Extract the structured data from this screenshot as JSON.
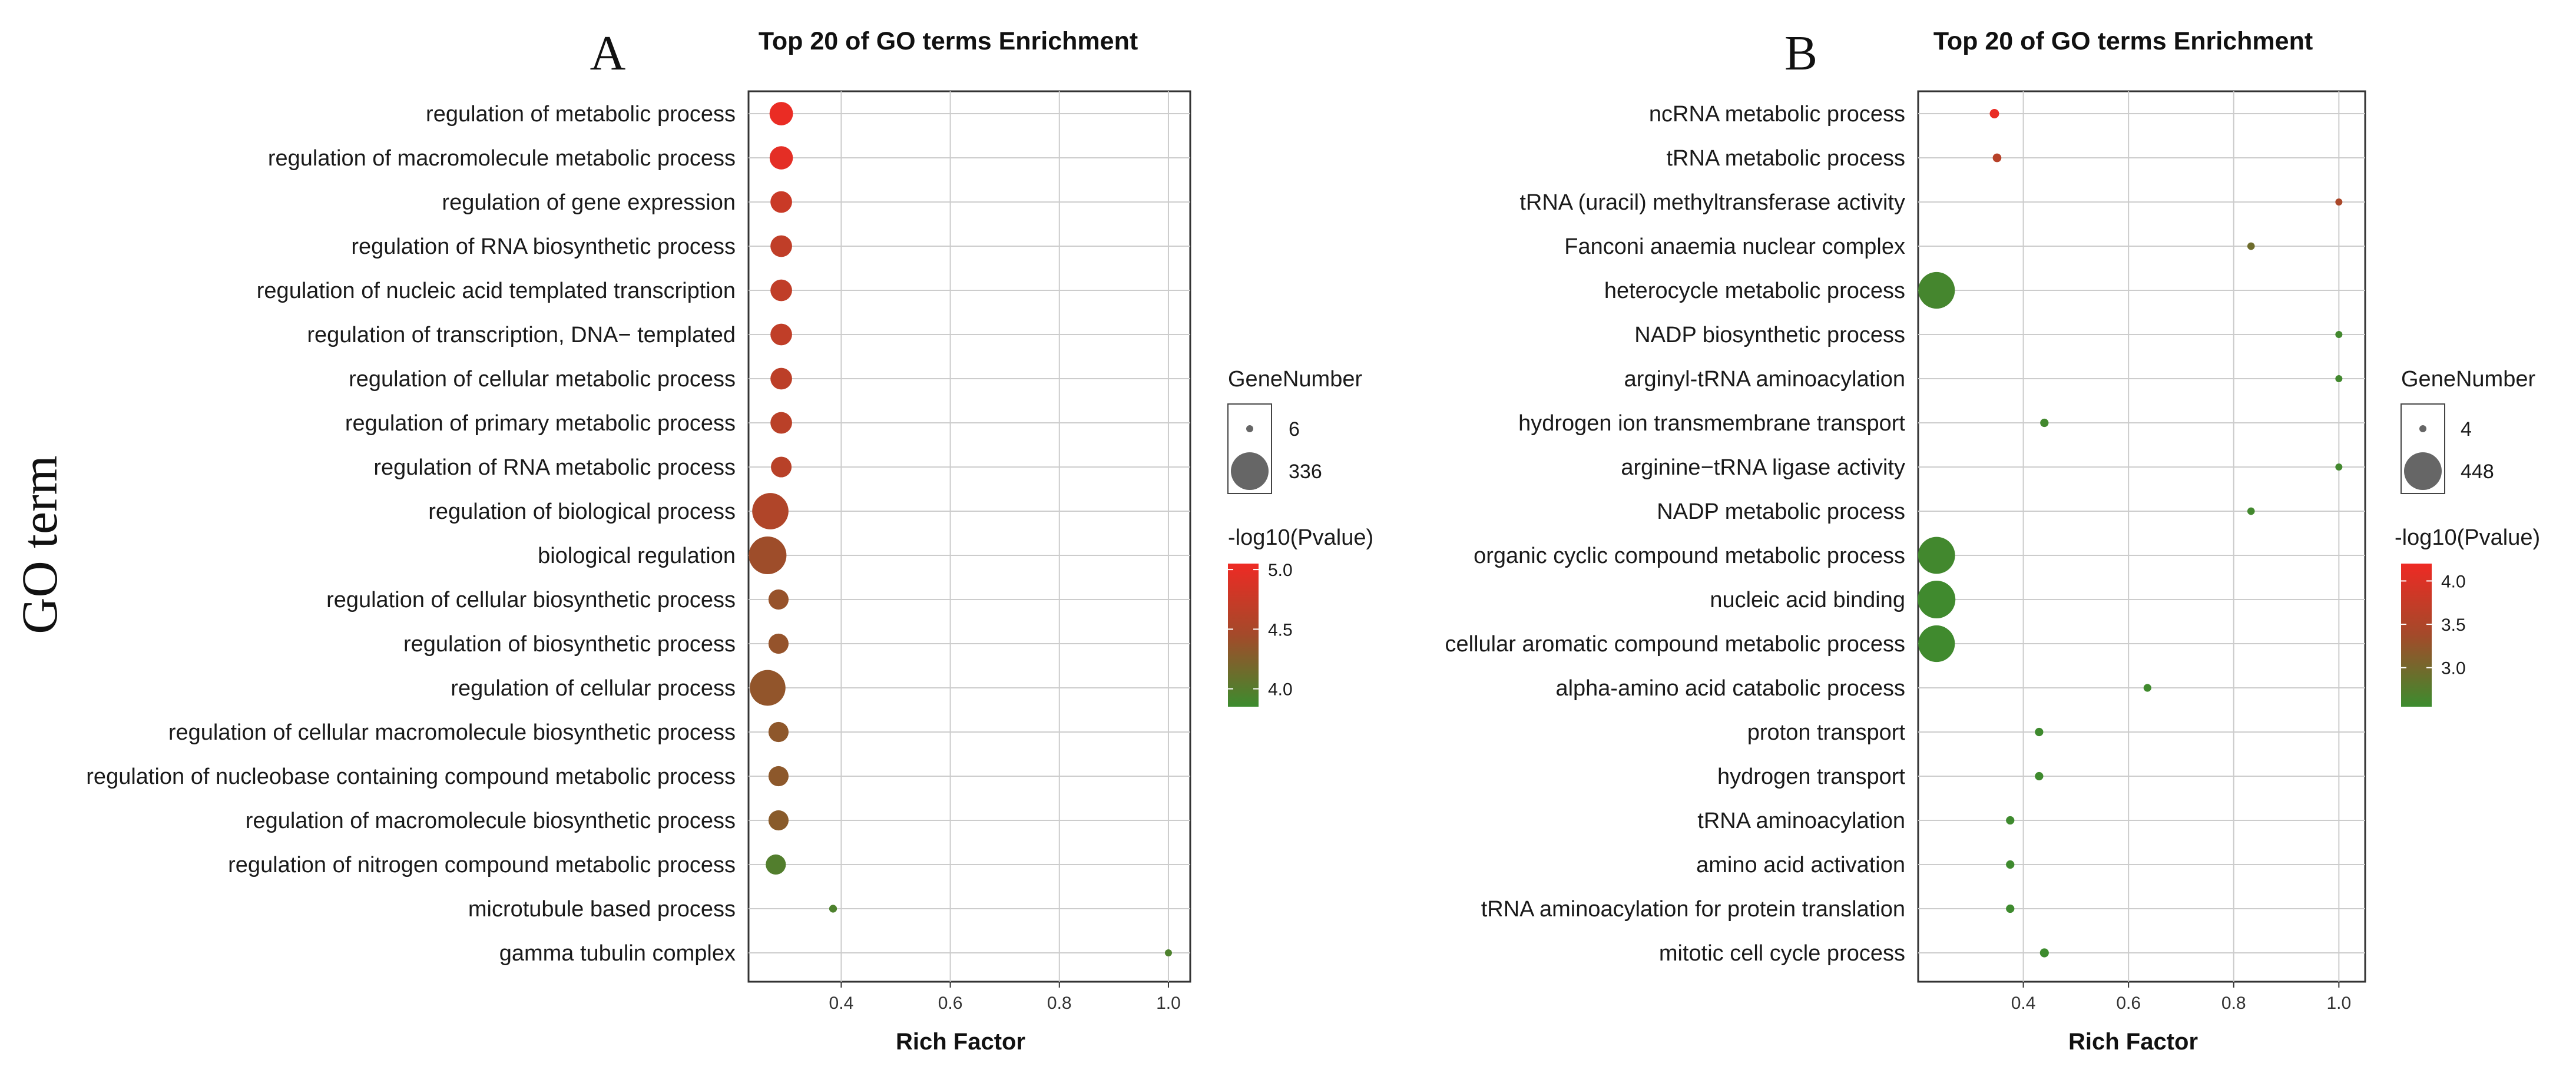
{
  "y_axis_title": "GO term",
  "colors": {
    "high": "#ee2a24",
    "mid": "#a34a2a",
    "low": "#3c8c2e",
    "dot_stroke": "#666666",
    "grid": "#cccccc"
  },
  "chart_data": [
    {
      "panel_letter": "A",
      "type": "scatter",
      "title": "Top 20 of GO terms Enrichment",
      "xlabel": "Rich Factor",
      "ylabel": "GO term",
      "xlim": [
        0.23,
        1.04
      ],
      "xticks": [
        0.4,
        0.6,
        0.8,
        1.0
      ],
      "xtick_labels": [
        "0.4",
        "0.6",
        "0.8",
        "1.0"
      ],
      "size_legend": {
        "title": "GeneNumber",
        "entries": [
          {
            "value": 6,
            "label": "6"
          },
          {
            "value": 336,
            "label": "336"
          }
        ]
      },
      "color_legend": {
        "title": "-log10(Pvalue)",
        "range": [
          3.85,
          5.05
        ],
        "ticks": [
          5.0,
          4.5,
          4.0
        ],
        "tick_labels": [
          "5.0",
          "4.5",
          "4.0"
        ]
      },
      "terms": [
        {
          "term": "regulation of metabolic process",
          "rich_factor": 0.29,
          "gene_number": 120,
          "log10p": 5.02
        },
        {
          "term": "regulation of macromolecule metabolic process",
          "rich_factor": 0.29,
          "gene_number": 118,
          "log10p": 4.97
        },
        {
          "term": "regulation of gene expression",
          "rich_factor": 0.29,
          "gene_number": 100,
          "log10p": 4.75
        },
        {
          "term": "regulation of RNA biosynthetic process",
          "rich_factor": 0.29,
          "gene_number": 100,
          "log10p": 4.68
        },
        {
          "term": "regulation of nucleic acid templated transcription",
          "rich_factor": 0.29,
          "gene_number": 100,
          "log10p": 4.68
        },
        {
          "term": "regulation of transcription, DNA− templated",
          "rich_factor": 0.29,
          "gene_number": 100,
          "log10p": 4.68
        },
        {
          "term": "regulation of cellular metabolic process",
          "rich_factor": 0.29,
          "gene_number": 100,
          "log10p": 4.65
        },
        {
          "term": "regulation of primary metabolic process",
          "rich_factor": 0.29,
          "gene_number": 100,
          "log10p": 4.63
        },
        {
          "term": "regulation of RNA metabolic process",
          "rich_factor": 0.29,
          "gene_number": 90,
          "log10p": 4.62
        },
        {
          "term": "regulation of biological process",
          "rich_factor": 0.27,
          "gene_number": 310,
          "log10p": 4.55
        },
        {
          "term": "biological regulation",
          "rich_factor": 0.265,
          "gene_number": 336,
          "log10p": 4.42
        },
        {
          "term": "regulation of cellular biosynthetic process",
          "rich_factor": 0.285,
          "gene_number": 85,
          "log10p": 4.38
        },
        {
          "term": "regulation of biosynthetic process",
          "rich_factor": 0.285,
          "gene_number": 85,
          "log10p": 4.37
        },
        {
          "term": "regulation of cellular process",
          "rich_factor": 0.265,
          "gene_number": 300,
          "log10p": 4.35
        },
        {
          "term": "regulation of cellular macromolecule biosynthetic process",
          "rich_factor": 0.285,
          "gene_number": 85,
          "log10p": 4.33
        },
        {
          "term": "regulation of nucleobase containing compound metabolic process",
          "rich_factor": 0.285,
          "gene_number": 85,
          "log10p": 4.32
        },
        {
          "term": "regulation of macromolecule biosynthetic process",
          "rich_factor": 0.285,
          "gene_number": 85,
          "log10p": 4.3
        },
        {
          "term": "regulation of nitrogen compound metabolic process",
          "rich_factor": 0.28,
          "gene_number": 85,
          "log10p": 3.98
        },
        {
          "term": "microtubule based process",
          "rich_factor": 0.385,
          "gene_number": 8,
          "log10p": 3.95
        },
        {
          "term": "gamma tubulin complex",
          "rich_factor": 1.0,
          "gene_number": 6,
          "log10p": 3.95
        }
      ]
    },
    {
      "panel_letter": "B",
      "type": "scatter",
      "title": "Top 20 of GO terms Enrichment",
      "xlabel": "Rich Factor",
      "ylabel": "GO term",
      "xlim": [
        0.2,
        1.05
      ],
      "xticks": [
        0.4,
        0.6,
        0.8,
        1.0
      ],
      "xtick_labels": [
        "0.4",
        "0.6",
        "0.8",
        "1.0"
      ],
      "size_legend": {
        "title": "GeneNumber",
        "entries": [
          {
            "value": 4,
            "label": "4"
          },
          {
            "value": 448,
            "label": "448"
          }
        ]
      },
      "color_legend": {
        "title": "-log10(Pvalue)",
        "range": [
          2.55,
          4.2
        ],
        "ticks": [
          4.0,
          3.5,
          3.0
        ],
        "tick_labels": [
          "4.0",
          "3.5",
          "3.0"
        ]
      },
      "terms": [
        {
          "term": "ncRNA metabolic process",
          "rich_factor": 0.345,
          "gene_number": 12,
          "log10p": 4.15
        },
        {
          "term": "tRNA metabolic process",
          "rich_factor": 0.35,
          "gene_number": 9,
          "log10p": 3.6
        },
        {
          "term": "tRNA (uracil) methyltransferase activity",
          "rich_factor": 1.0,
          "gene_number": 4,
          "log10p": 3.45
        },
        {
          "term": "Fanconi anaemia nuclear complex",
          "rich_factor": 0.833,
          "gene_number": 5,
          "log10p": 2.95
        },
        {
          "term": "heterocycle metabolic process",
          "rich_factor": 0.235,
          "gene_number": 420,
          "log10p": 2.62
        },
        {
          "term": "NADP biosynthetic process",
          "rich_factor": 1.0,
          "gene_number": 4,
          "log10p": 2.6
        },
        {
          "term": "arginyl-tRNA aminoacylation",
          "rich_factor": 1.0,
          "gene_number": 4,
          "log10p": 2.6
        },
        {
          "term": "hydrogen ion transmembrane transport",
          "rich_factor": 0.44,
          "gene_number": 8,
          "log10p": 2.6
        },
        {
          "term": "arginine−tRNA ligase activity",
          "rich_factor": 1.0,
          "gene_number": 4,
          "log10p": 2.6
        },
        {
          "term": "NADP metabolic process",
          "rich_factor": 0.833,
          "gene_number": 5,
          "log10p": 2.6
        },
        {
          "term": "organic cyclic compound metabolic process",
          "rich_factor": 0.235,
          "gene_number": 430,
          "log10p": 2.6
        },
        {
          "term": "nucleic acid binding",
          "rich_factor": 0.235,
          "gene_number": 448,
          "log10p": 2.58
        },
        {
          "term": "cellular aromatic compound metabolic process",
          "rich_factor": 0.235,
          "gene_number": 420,
          "log10p": 2.58
        },
        {
          "term": "alpha-amino acid catabolic process",
          "rich_factor": 0.636,
          "gene_number": 6,
          "log10p": 2.58
        },
        {
          "term": "proton transport",
          "rich_factor": 0.43,
          "gene_number": 8,
          "log10p": 2.57
        },
        {
          "term": "hydrogen transport",
          "rich_factor": 0.43,
          "gene_number": 8,
          "log10p": 2.57
        },
        {
          "term": "tRNA aminoacylation",
          "rich_factor": 0.375,
          "gene_number": 8,
          "log10p": 2.57
        },
        {
          "term": "amino acid activation",
          "rich_factor": 0.375,
          "gene_number": 8,
          "log10p": 2.57
        },
        {
          "term": "tRNA aminoacylation for protein translation",
          "rich_factor": 0.375,
          "gene_number": 8,
          "log10p": 2.57
        },
        {
          "term": "mitotic cell cycle process",
          "rich_factor": 0.44,
          "gene_number": 10,
          "log10p": 2.56
        }
      ]
    }
  ]
}
